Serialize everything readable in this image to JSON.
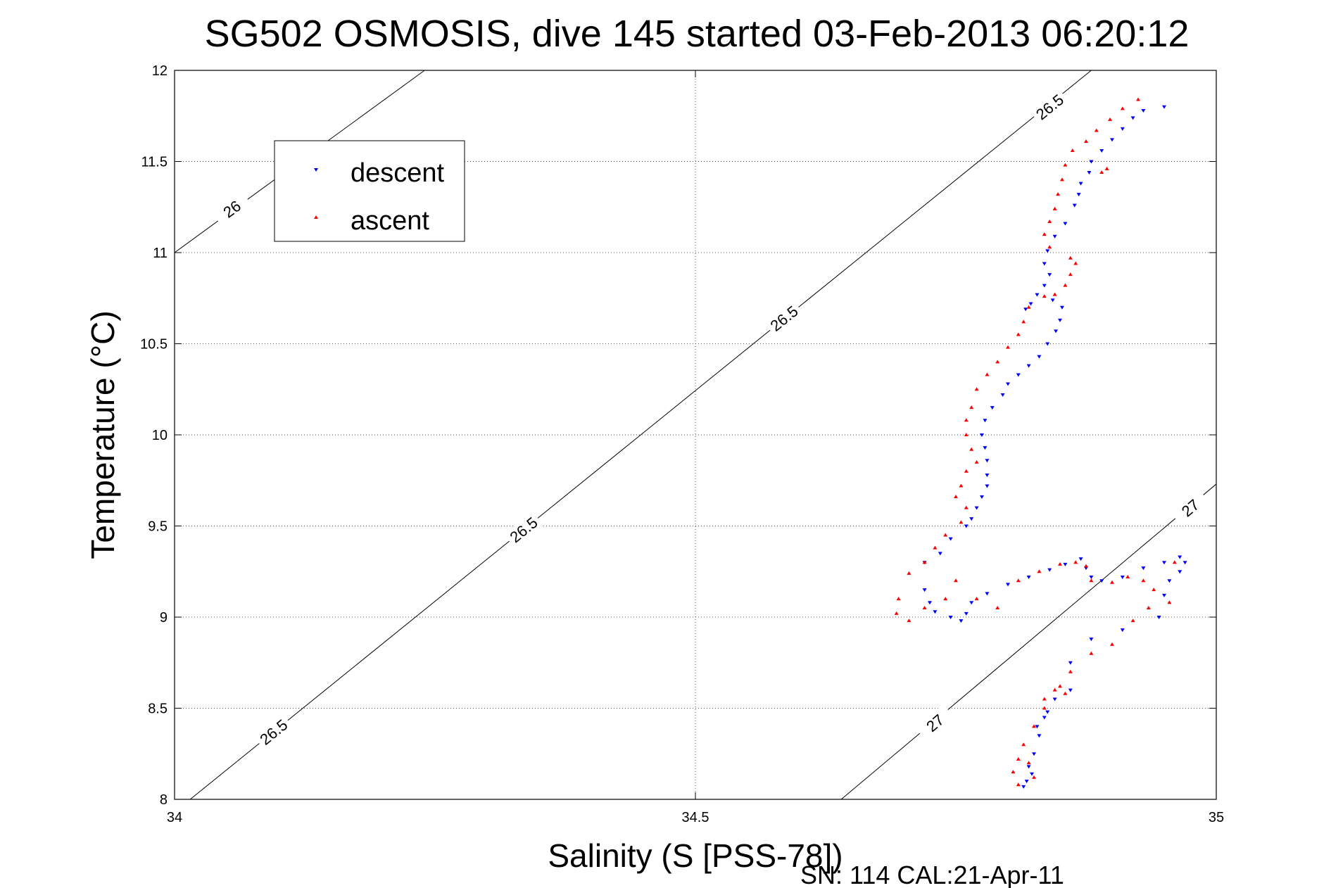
{
  "chart_data": {
    "type": "scatter",
    "title": "SG502 OSMOSIS, dive 145 started 03-Feb-2013 06:20:12",
    "xlabel": "Salinity (S [PSS-78])",
    "ylabel": "Temperature (°C)",
    "footer": "SN: 114  CAL:21-Apr-11",
    "xlim": [
      34,
      35
    ],
    "ylim": [
      8,
      12
    ],
    "xticks": [
      "34",
      "34.5",
      "35"
    ],
    "yticks": [
      "8",
      "8.5",
      "9",
      "9.5",
      "10",
      "10.5",
      "11",
      "11.5",
      "12"
    ],
    "grid": true,
    "legend_position": "top-left",
    "series": [
      {
        "name": "descent",
        "marker": "triangle-down",
        "color": "#0000ff",
        "points": [
          [
            34.95,
            11.8
          ],
          [
            34.93,
            11.78
          ],
          [
            34.92,
            11.74
          ],
          [
            34.91,
            11.68
          ],
          [
            34.9,
            11.62
          ],
          [
            34.89,
            11.56
          ],
          [
            34.88,
            11.5
          ],
          [
            34.878,
            11.44
          ],
          [
            34.87,
            11.38
          ],
          [
            34.868,
            11.32
          ],
          [
            34.864,
            11.26
          ],
          [
            34.855,
            11.16
          ],
          [
            34.845,
            11.09
          ],
          [
            34.838,
            11.01
          ],
          [
            34.835,
            10.94
          ],
          [
            34.84,
            10.88
          ],
          [
            34.835,
            10.82
          ],
          [
            34.828,
            10.77
          ],
          [
            34.822,
            10.72
          ],
          [
            34.817,
            10.69
          ],
          [
            34.843,
            10.74
          ],
          [
            34.852,
            10.7
          ],
          [
            34.85,
            10.63
          ],
          [
            34.846,
            10.57
          ],
          [
            34.838,
            10.5
          ],
          [
            34.83,
            10.43
          ],
          [
            34.82,
            10.38
          ],
          [
            34.81,
            10.33
          ],
          [
            34.8,
            10.28
          ],
          [
            34.795,
            10.22
          ],
          [
            34.785,
            10.15
          ],
          [
            34.778,
            10.08
          ],
          [
            34.775,
            10.0
          ],
          [
            34.778,
            9.93
          ],
          [
            34.78,
            9.86
          ],
          [
            34.78,
            9.78
          ],
          [
            34.78,
            9.72
          ],
          [
            34.775,
            9.66
          ],
          [
            34.77,
            9.6
          ],
          [
            34.765,
            9.54
          ],
          [
            34.76,
            9.5
          ],
          [
            34.745,
            9.43
          ],
          [
            34.735,
            9.35
          ],
          [
            34.72,
            9.3
          ],
          [
            34.72,
            9.15
          ],
          [
            34.725,
            9.08
          ],
          [
            34.73,
            9.03
          ],
          [
            34.745,
            9.0
          ],
          [
            34.755,
            8.98
          ],
          [
            34.76,
            9.02
          ],
          [
            34.765,
            9.08
          ],
          [
            34.78,
            9.13
          ],
          [
            34.8,
            9.18
          ],
          [
            34.82,
            9.22
          ],
          [
            34.84,
            9.26
          ],
          [
            34.855,
            9.29
          ],
          [
            34.87,
            9.32
          ],
          [
            34.875,
            9.27
          ],
          [
            34.88,
            9.22
          ],
          [
            34.89,
            9.2
          ],
          [
            34.91,
            9.22
          ],
          [
            34.93,
            9.27
          ],
          [
            34.95,
            9.3
          ],
          [
            34.965,
            9.33
          ],
          [
            34.97,
            9.3
          ],
          [
            34.965,
            9.25
          ],
          [
            34.955,
            9.2
          ],
          [
            34.95,
            9.12
          ],
          [
            34.945,
            9.0
          ],
          [
            34.91,
            8.93
          ],
          [
            34.88,
            8.88
          ],
          [
            34.86,
            8.75
          ],
          [
            34.845,
            8.55
          ],
          [
            34.835,
            8.45
          ],
          [
            34.83,
            8.35
          ],
          [
            34.825,
            8.25
          ],
          [
            34.82,
            8.18
          ],
          [
            34.818,
            8.1
          ],
          [
            34.815,
            8.07
          ],
          [
            34.823,
            8.14
          ],
          [
            34.828,
            8.4
          ],
          [
            34.838,
            8.48
          ],
          [
            34.86,
            8.6
          ]
        ]
      },
      {
        "name": "ascent",
        "marker": "triangle-up",
        "color": "#ff0000",
        "points": [
          [
            34.925,
            11.84
          ],
          [
            34.91,
            11.79
          ],
          [
            34.898,
            11.73
          ],
          [
            34.885,
            11.67
          ],
          [
            34.875,
            11.61
          ],
          [
            34.862,
            11.56
          ],
          [
            34.855,
            11.48
          ],
          [
            34.89,
            11.44
          ],
          [
            34.895,
            11.46
          ],
          [
            34.852,
            11.4
          ],
          [
            34.848,
            11.32
          ],
          [
            34.845,
            11.24
          ],
          [
            34.84,
            11.17
          ],
          [
            34.835,
            11.1
          ],
          [
            34.84,
            11.03
          ],
          [
            34.86,
            10.97
          ],
          [
            34.865,
            10.94
          ],
          [
            34.86,
            10.88
          ],
          [
            34.855,
            10.82
          ],
          [
            34.845,
            10.77
          ],
          [
            34.835,
            10.76
          ],
          [
            34.82,
            10.7
          ],
          [
            34.815,
            10.62
          ],
          [
            34.81,
            10.55
          ],
          [
            34.8,
            10.48
          ],
          [
            34.79,
            10.4
          ],
          [
            34.78,
            10.33
          ],
          [
            34.77,
            10.25
          ],
          [
            34.765,
            10.15
          ],
          [
            34.76,
            10.08
          ],
          [
            34.76,
            10.0
          ],
          [
            34.765,
            9.92
          ],
          [
            34.77,
            9.85
          ],
          [
            34.76,
            9.8
          ],
          [
            34.755,
            9.72
          ],
          [
            34.75,
            9.66
          ],
          [
            34.76,
            9.6
          ],
          [
            34.755,
            9.52
          ],
          [
            34.74,
            9.45
          ],
          [
            34.73,
            9.38
          ],
          [
            34.72,
            9.3
          ],
          [
            34.705,
            9.24
          ],
          [
            34.695,
            9.1
          ],
          [
            34.693,
            9.02
          ],
          [
            34.705,
            8.98
          ],
          [
            34.72,
            9.05
          ],
          [
            34.74,
            9.1
          ],
          [
            34.75,
            9.2
          ],
          [
            34.77,
            9.1
          ],
          [
            34.79,
            9.05
          ],
          [
            34.81,
            9.2
          ],
          [
            34.83,
            9.25
          ],
          [
            34.85,
            9.29
          ],
          [
            34.865,
            9.3
          ],
          [
            34.875,
            9.28
          ],
          [
            34.88,
            9.2
          ],
          [
            34.9,
            9.19
          ],
          [
            34.915,
            9.22
          ],
          [
            34.93,
            9.2
          ],
          [
            34.94,
            9.15
          ],
          [
            34.955,
            9.08
          ],
          [
            34.96,
            9.3
          ],
          [
            34.935,
            9.05
          ],
          [
            34.92,
            8.98
          ],
          [
            34.9,
            8.85
          ],
          [
            34.88,
            8.8
          ],
          [
            34.86,
            8.7
          ],
          [
            34.845,
            8.6
          ],
          [
            34.835,
            8.5
          ],
          [
            34.825,
            8.4
          ],
          [
            34.815,
            8.3
          ],
          [
            34.81,
            8.22
          ],
          [
            34.805,
            8.15
          ],
          [
            34.81,
            8.08
          ],
          [
            34.825,
            8.12
          ],
          [
            34.82,
            8.2
          ],
          [
            34.835,
            8.55
          ],
          [
            34.85,
            8.62
          ],
          [
            34.855,
            8.58
          ]
        ]
      }
    ],
    "contours": [
      {
        "label": "26",
        "points": [
          [
            34,
            11.0
          ],
          [
            34.24,
            12.0
          ]
        ],
        "label_positions": [
          [
            34.055,
            11.24
          ]
        ]
      },
      {
        "label": "26.5",
        "points": [
          [
            34.015,
            8.0
          ],
          [
            34.88,
            12.0
          ]
        ],
        "label_positions": [
          [
            34.095,
            8.37
          ],
          [
            34.335,
            9.48
          ],
          [
            34.585,
            10.64
          ],
          [
            34.84,
            11.8
          ]
        ]
      },
      {
        "label": "27",
        "points": [
          [
            34.64,
            8.0
          ],
          [
            35.0,
            9.73
          ]
        ],
        "label_positions": [
          [
            34.73,
            8.42
          ],
          [
            34.975,
            9.6
          ]
        ]
      }
    ]
  }
}
